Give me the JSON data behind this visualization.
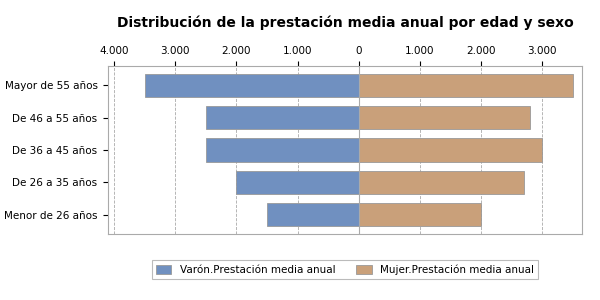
{
  "title": "Distribución de la prestación media anual por edad y sexo",
  "categories": [
    "Menor de 26 años",
    "De 26 a 35 años",
    "De 36 a 45 años",
    "De 46 a 55 años",
    "Mayor de 55 años"
  ],
  "varon": [
    -1500,
    -2000,
    -2500,
    -2500,
    -3500
  ],
  "mujer": [
    2000,
    2700,
    3000,
    2800,
    3500
  ],
  "varon_color": "#7090C0",
  "mujer_color": "#C9A07A",
  "xlim": [
    -4100,
    3650
  ],
  "xticks": [
    -4000,
    -3000,
    -2000,
    -1000,
    0,
    1000,
    2000,
    3000
  ],
  "xtick_labels": [
    "4.000",
    "3.000",
    "2.000",
    "1.000",
    "0",
    "1.000",
    "2.000",
    "3.000"
  ],
  "legend_varon": "Varón.Prestación media anual",
  "legend_mujer": "Mujer.Prestación media anual",
  "background_color": "#FFFFFF",
  "plot_bg_color": "#FFFFFF",
  "grid_color": "#AAAAAA",
  "title_fontsize": 10,
  "tick_fontsize": 7.5,
  "bar_height": 0.72
}
